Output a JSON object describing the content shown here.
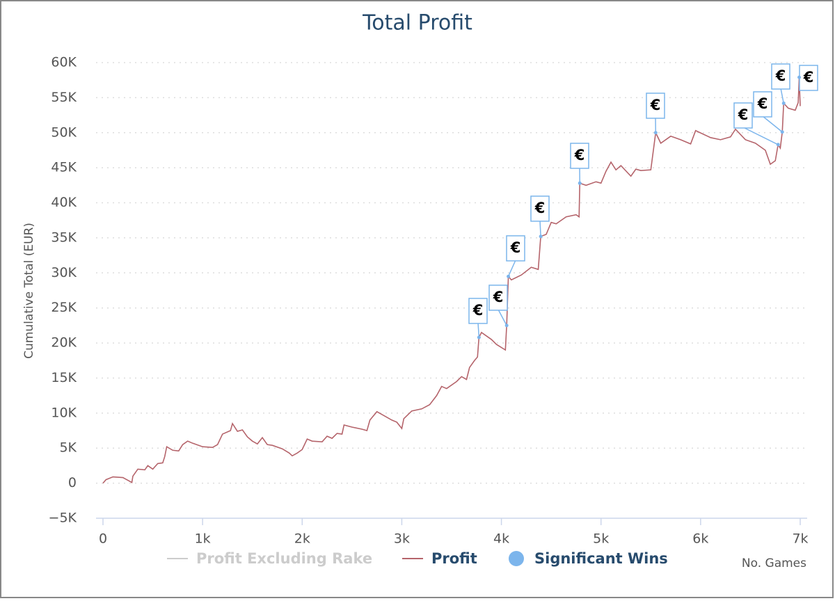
{
  "chart_data": {
    "type": "line",
    "title": "Total Profit",
    "y_label": "Cumulative Total (EUR)",
    "x_label": "No. Games",
    "xlim": [
      0,
      7000
    ],
    "ylim": [
      -5000,
      60000
    ],
    "xticks": [
      0,
      {
        "value": 1000,
        "label": "1k"
      },
      {
        "value": 2000,
        "label": "2k"
      },
      {
        "value": 3000,
        "label": "3k"
      },
      {
        "value": 4000,
        "label": "4k"
      },
      {
        "value": 5000,
        "label": "5k"
      },
      {
        "value": 6000,
        "label": "6k"
      },
      {
        "value": 7000,
        "label": "7k"
      }
    ],
    "yticks": [
      {
        "value": -5000,
        "label": "−5K"
      },
      0,
      {
        "value": 5000,
        "label": "5K"
      },
      {
        "value": 10000,
        "label": "10K"
      },
      {
        "value": 15000,
        "label": "15K"
      },
      {
        "value": 20000,
        "label": "20K"
      },
      {
        "value": 25000,
        "label": "25K"
      },
      {
        "value": 30000,
        "label": "30K"
      },
      {
        "value": 35000,
        "label": "35K"
      },
      {
        "value": 40000,
        "label": "40K"
      },
      {
        "value": 45000,
        "label": "45K"
      },
      {
        "value": 50000,
        "label": "50K"
      },
      {
        "value": 55000,
        "label": "55K"
      },
      {
        "value": 60000,
        "label": "60K"
      }
    ],
    "grid": true,
    "legend": "bottom",
    "series": [
      {
        "name": "Profit Excluding Rake",
        "color": "#cccccc",
        "type": "line",
        "visible": false,
        "x": [],
        "values": []
      },
      {
        "name": "Profit",
        "color": "#b5646b",
        "type": "line",
        "x": [
          0,
          30,
          100,
          200,
          290,
          300,
          350,
          420,
          450,
          500,
          550,
          600,
          620,
          640,
          700,
          760,
          800,
          850,
          900,
          1000,
          1100,
          1150,
          1200,
          1280,
          1300,
          1350,
          1400,
          1450,
          1500,
          1550,
          1600,
          1650,
          1700,
          1800,
          1870,
          1900,
          1950,
          2000,
          2050,
          2100,
          2200,
          2250,
          2300,
          2350,
          2400,
          2420,
          2500,
          2600,
          2650,
          2680,
          2750,
          2800,
          2900,
          2950,
          3000,
          3020,
          3100,
          3200,
          3280,
          3350,
          3400,
          3450,
          3550,
          3600,
          3650,
          3680,
          3730,
          3760,
          3775,
          3800,
          3900,
          3950,
          4040,
          4053,
          4070,
          4100,
          4200,
          4300,
          4370,
          4395,
          4450,
          4500,
          4550,
          4650,
          4750,
          4780,
          4787,
          4850,
          4950,
          5000,
          5050,
          5100,
          5150,
          5200,
          5300,
          5350,
          5400,
          5500,
          5549,
          5600,
          5700,
          5800,
          5900,
          5950,
          6100,
          6200,
          6300,
          6350,
          6450,
          6550,
          6650,
          6700,
          6750,
          6778,
          6800,
          6820,
          6834,
          6880,
          6950,
          6980,
          6990,
          7000
        ],
        "values": [
          0,
          500,
          900,
          800,
          100,
          1000,
          2000,
          1900,
          2500,
          2000,
          2800,
          2900,
          3800,
          5200,
          4700,
          4600,
          5500,
          6000,
          5700,
          5200,
          5100,
          5500,
          7000,
          7500,
          8500,
          7400,
          7600,
          6600,
          6000,
          5600,
          6500,
          5500,
          5400,
          4900,
          4300,
          3900,
          4300,
          4800,
          6300,
          6000,
          5900,
          6700,
          6400,
          7100,
          7000,
          8300,
          8000,
          7700,
          7500,
          9000,
          10200,
          9800,
          9000,
          8700,
          7800,
          9200,
          10300,
          10600,
          11200,
          12500,
          13800,
          13500,
          14500,
          15200,
          14800,
          16500,
          17500,
          18000,
          20800,
          21500,
          20500,
          19800,
          19000,
          22500,
          29500,
          29000,
          29700,
          30800,
          30500,
          35200,
          35500,
          37200,
          37000,
          38000,
          38300,
          38000,
          42800,
          42500,
          43000,
          42800,
          44500,
          45800,
          44700,
          45300,
          43800,
          44800,
          44600,
          44700,
          50000,
          48500,
          49500,
          49000,
          48400,
          50300,
          49300,
          49000,
          49400,
          50500,
          49000,
          48500,
          47500,
          45500,
          46000,
          48300,
          47800,
          50100,
          54200,
          53500,
          53200,
          54300,
          57900,
          53800
        ]
      },
      {
        "name": "Significant Wins",
        "color": "#7cb5ec",
        "type": "scatter",
        "x": [
          3775,
          4053,
          4070,
          4395,
          4787,
          5549,
          6778,
          6820,
          6834,
          6990
        ],
        "values": [
          20800,
          22500,
          29500,
          35200,
          42800,
          50000,
          48300,
          50100,
          54200,
          57900
        ],
        "labels": [
          "€",
          "€",
          "€",
          "€",
          "€",
          "€",
          "€",
          "€",
          "€",
          "€"
        ]
      }
    ]
  }
}
